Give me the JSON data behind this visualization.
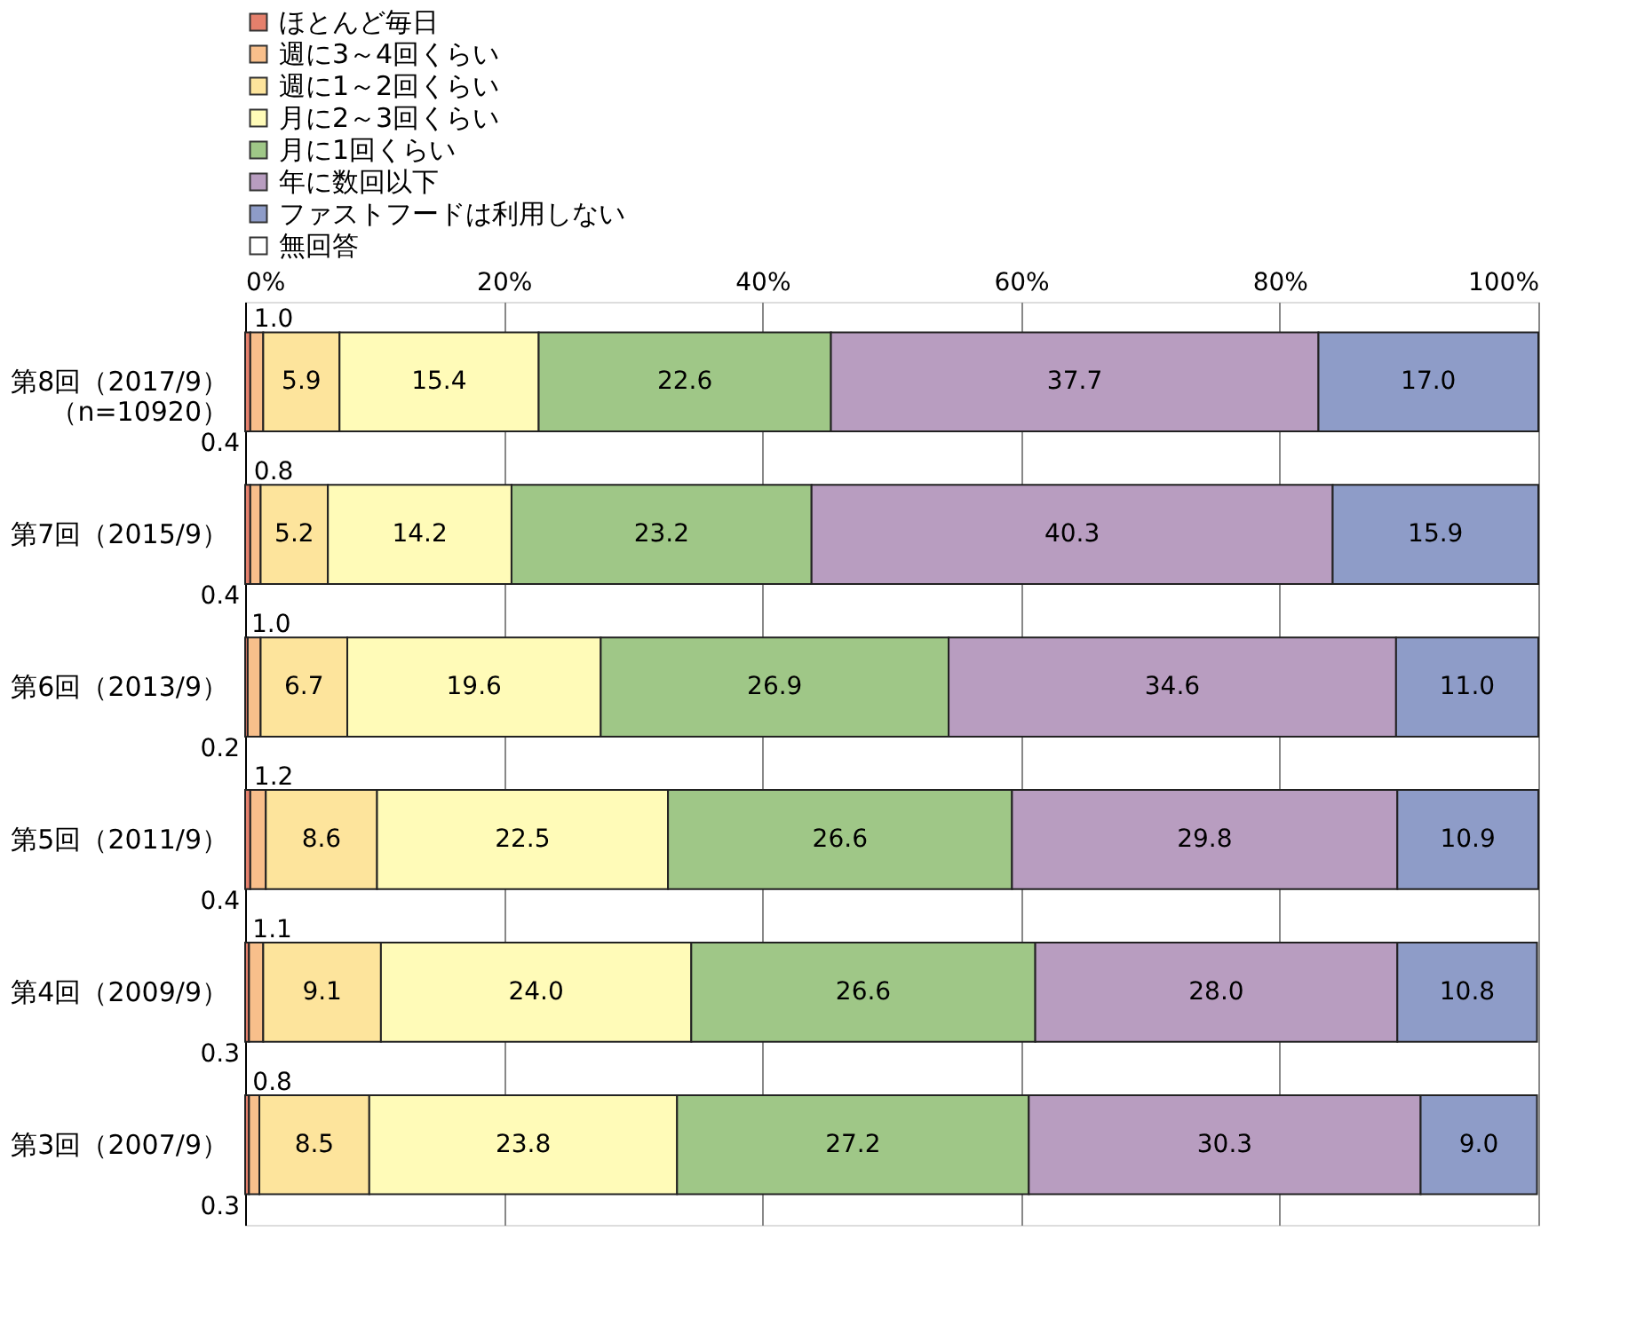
{
  "chart_data": {
    "type": "bar",
    "orientation": "horizontal",
    "stacked": true,
    "legend": "top",
    "grid": "x",
    "categories": [
      "第8回（2017/9）（n=10920）",
      "第7回（2015/9）",
      "第6回（2013/9）",
      "第5回（2011/9）",
      "第4回（2009/9）",
      "第3回（2007/9）"
    ],
    "series": [
      {
        "name": "ほとんど毎日",
        "color": "#e5806c",
        "values": [
          0.4,
          0.4,
          0.2,
          0.4,
          0.3,
          0.3
        ],
        "value_labels": [
          "0.4",
          "0.4",
          "0.2",
          "0.4",
          "0.3",
          "0.3"
        ]
      },
      {
        "name": "週に3～4回くらい",
        "color": "#f8bf8b",
        "values": [
          1.0,
          0.8,
          1.0,
          1.2,
          1.1,
          0.8
        ],
        "value_labels": [
          "1.0",
          "0.8",
          "1.0",
          "1.2",
          "1.1",
          "0.8"
        ]
      },
      {
        "name": "週に1～2回くらい",
        "color": "#fde49c",
        "values": [
          5.9,
          5.2,
          6.7,
          8.6,
          9.1,
          8.5
        ],
        "value_labels": [
          "5.9",
          "5.2",
          "6.7",
          "8.6",
          "9.1",
          "8.5"
        ]
      },
      {
        "name": "月に2～3回くらい",
        "color": "#fffbb8",
        "values": [
          15.4,
          14.2,
          19.6,
          22.5,
          24.0,
          23.8
        ],
        "value_labels": [
          "15.4",
          "14.2",
          "19.6",
          "22.5",
          "24.0",
          "23.8"
        ]
      },
      {
        "name": "月に1回くらい",
        "color": "#9fc787",
        "values": [
          22.6,
          23.2,
          26.9,
          26.6,
          26.6,
          27.2
        ],
        "value_labels": [
          "22.6",
          "23.2",
          "26.9",
          "26.6",
          "26.6",
          "27.2"
        ]
      },
      {
        "name": "年に数回以下",
        "color": "#b89dc0",
        "values": [
          37.7,
          40.3,
          34.6,
          29.8,
          28.0,
          30.3
        ],
        "value_labels": [
          "37.7",
          "40.3",
          "34.6",
          "29.8",
          "28.0",
          "30.3"
        ]
      },
      {
        "name": "ファストフードは利用しない",
        "color": "#8e9cc8",
        "values": [
          17.0,
          15.9,
          11.0,
          10.9,
          10.8,
          9.0
        ],
        "value_labels": [
          "17.0",
          "15.9",
          "11.0",
          "10.9",
          "10.8",
          "9.0"
        ]
      },
      {
        "name": "無回答",
        "color": "#ffffff",
        "values": [
          null,
          null,
          null,
          null,
          null,
          null
        ]
      }
    ],
    "xlim": [
      0,
      100
    ],
    "xticks": [
      {
        "value": 0,
        "label": "0%"
      },
      {
        "value": 20,
        "label": "20%"
      },
      {
        "value": 40,
        "label": "40%"
      },
      {
        "value": 60,
        "label": "60%"
      },
      {
        "value": 80,
        "label": "80%"
      },
      {
        "value": 100,
        "label": "100%"
      }
    ]
  }
}
